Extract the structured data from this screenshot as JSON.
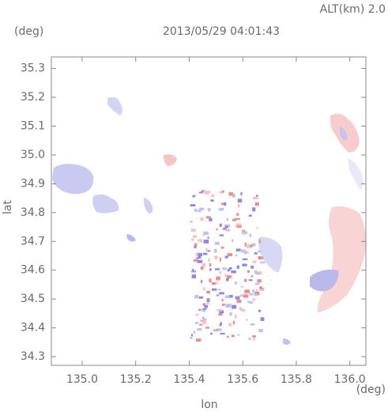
{
  "chart_data": {
    "type": "map",
    "title": "2013/05/29 04:01:43",
    "altitude_label": "ALT(km) 2.0",
    "y_unit": "(deg)",
    "x_unit": "(deg)",
    "xlabel": "lon",
    "ylabel": "lat",
    "xlim": [
      134.885,
      136.06
    ],
    "xticks": [
      {
        "value": 135,
        "label": "135.0"
      },
      135.2,
      135.4,
      135.6,
      135.8,
      {
        "value": 136,
        "label": "136.0"
      }
    ],
    "ylim": [
      34.27,
      35.34
    ],
    "yticks": [
      34.3,
      34.4,
      34.5,
      34.6,
      34.7,
      34.8,
      34.9,
      {
        "value": 35,
        "label": "35.0"
      },
      35.1,
      35.2,
      35.3
    ]
  }
}
